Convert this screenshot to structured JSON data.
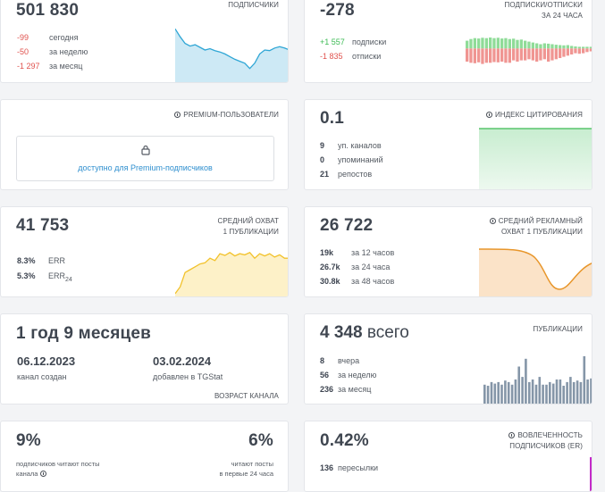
{
  "subscribers": {
    "value": "501 830",
    "label": "ПОДПИСЧИКИ",
    "rows": [
      {
        "v": "-99",
        "t": "сегодня"
      },
      {
        "v": "-50",
        "t": "за неделю"
      },
      {
        "v": "-1 297",
        "t": "за месяц"
      }
    ],
    "chart": [
      0.82,
      0.7,
      0.6,
      0.56,
      0.58,
      0.54,
      0.5,
      0.52,
      0.49,
      0.47,
      0.44,
      0.4,
      0.36,
      0.33,
      0.3,
      0.22,
      0.3,
      0.44,
      0.5,
      0.49,
      0.53,
      0.55,
      0.53,
      0.5
    ]
  },
  "balance": {
    "value": "-278",
    "label_line1": "ПОДПИСКИ/ОТПИСКИ",
    "label_line2": "ЗА 24 ЧАСА",
    "rows": [
      {
        "v": "+1 557",
        "t": "подписки"
      },
      {
        "v": "-1 835",
        "t": "отписки"
      }
    ],
    "pos": [
      0.45,
      0.55,
      0.6,
      0.58,
      0.62,
      0.6,
      0.64,
      0.6,
      0.62,
      0.58,
      0.6,
      0.55,
      0.57,
      0.5,
      0.52,
      0.45,
      0.4,
      0.35,
      0.3,
      0.25,
      0.3,
      0.28,
      0.25,
      0.22,
      0.2,
      0.18,
      0.2,
      0.15,
      0.12,
      0.1,
      0.1,
      0.1,
      0.1
    ],
    "neg": [
      0.55,
      0.6,
      0.62,
      0.58,
      0.65,
      0.6,
      0.6,
      0.57,
      0.58,
      0.55,
      0.6,
      0.6,
      0.5,
      0.55,
      0.5,
      0.5,
      0.45,
      0.5,
      0.55,
      0.5,
      0.45,
      0.55,
      0.5,
      0.45,
      0.4,
      0.35,
      0.3,
      0.25,
      0.2,
      0.22,
      0.2,
      0.15,
      0.12
    ]
  },
  "premium": {
    "label": "PREMIUM-ПОЛЬЗОВАТЕЛИ",
    "link": "доступно для Premium-подписчиков"
  },
  "citation": {
    "value": "0.1",
    "label": "ИНДЕКС ЦИТИРОВАНИЯ",
    "rows": [
      {
        "v": "9",
        "t": "уп. каналов"
      },
      {
        "v": "0",
        "t": "упоминаний"
      },
      {
        "v": "21",
        "t": "репостов"
      }
    ]
  },
  "reach": {
    "value": "41 753",
    "label_line1": "СРЕДНИЙ ОХВАТ",
    "label_line2": "1 ПУБЛИКАЦИИ",
    "rows": [
      {
        "v": "8.3%",
        "t": "ERR"
      },
      {
        "v": "5.3%",
        "t": "ERR",
        "sub": "24"
      }
    ],
    "chart": [
      0.08,
      0.2,
      0.45,
      0.5,
      0.55,
      0.6,
      0.62,
      0.7,
      0.66,
      0.78,
      0.75,
      0.8,
      0.74,
      0.78,
      0.76,
      0.8,
      0.7,
      0.78,
      0.74,
      0.78,
      0.72,
      0.76,
      0.7,
      0.7
    ]
  },
  "adreach": {
    "value": "26 722",
    "label_line1": "СРЕДНИЙ РЕКЛАМНЫЙ",
    "label_line2": "ОХВАТ 1 ПУБЛИКАЦИИ",
    "rows": [
      {
        "v": "19k",
        "t": "за 12 часов"
      },
      {
        "v": "26.7k",
        "t": "за 24 часа"
      },
      {
        "v": "30.8k",
        "t": "за 48 часов"
      }
    ]
  },
  "age": {
    "value": "1 год 9 месяцев",
    "created_date": "06.12.2023",
    "created_label": "канал создан",
    "added_date": "03.02.2024",
    "added_label": "добавлен в TGStat",
    "label": "ВОЗРАСТ КАНАЛА"
  },
  "posts": {
    "value": "4 348",
    "value_suffix": "всего",
    "label": "ПУБЛИКАЦИИ",
    "rows": [
      {
        "v": "8",
        "t": "вчера"
      },
      {
        "v": "56",
        "t": "за неделю"
      },
      {
        "v": "236",
        "t": "за месяц"
      }
    ],
    "bars": [
      0.4,
      0.38,
      0.45,
      0.42,
      0.45,
      0.4,
      0.48,
      0.45,
      0.4,
      0.5,
      0.75,
      0.55,
      0.9,
      0.45,
      0.5,
      0.4,
      0.55,
      0.4,
      0.4,
      0.45,
      0.42,
      0.5,
      0.5,
      0.38,
      0.45,
      0.55,
      0.45,
      0.48,
      0.45,
      0.95,
      0.5,
      0.52
    ]
  },
  "read": {
    "left_value": "9%",
    "left_text_line1": "подписчиков читают посты",
    "left_text_line2": "канала",
    "right_value": "6%",
    "right_text_line1": "читают посты",
    "right_text_line2": "в первые 24 часа"
  },
  "engagement": {
    "value": "0.42%",
    "label_line1": "ВОВЛЕЧЕННОСТЬ",
    "label_line2": "ПОДПИСЧИКОВ (ER)",
    "rows": [
      {
        "v": "136",
        "t": "пересылки"
      }
    ]
  },
  "colors": {
    "blue": "#2fa6d5",
    "green": "#3dbb55",
    "red": "#e0524e",
    "yellow": "#f2c22c",
    "orange": "#e8962b",
    "bar": "#8596a8",
    "purple": "#c32ac9"
  }
}
